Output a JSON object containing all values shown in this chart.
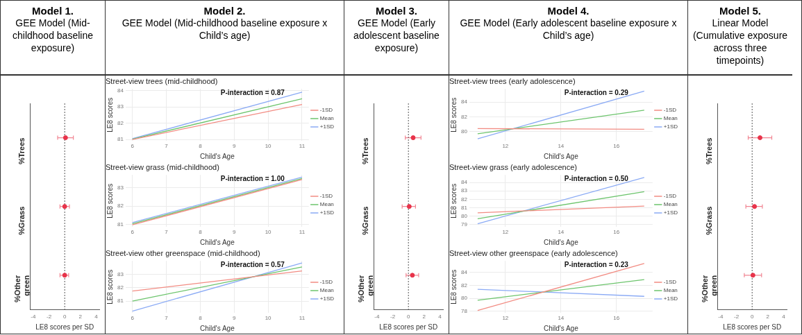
{
  "chart_data": [
    {
      "type": "scatter",
      "title": "Model 1.",
      "subtitle": "GEE Model (Mid-childhood baseline exposure)",
      "orientation": "horizontal",
      "categories": [
        "%Trees",
        "%Grass",
        "%Other green"
      ],
      "values": [
        0.1,
        0.0,
        0.0
      ],
      "errors": [
        [
          -0.9,
          1.1
        ],
        [
          -0.6,
          0.6
        ],
        [
          -0.6,
          0.5
        ]
      ],
      "color": "#e8334a",
      "xlabel": "LE8 scores per SD",
      "xlim": [
        -4.4,
        4.4
      ],
      "xticks": [
        -4,
        -2,
        0,
        2,
        4
      ],
      "ref_lines": [
        {
          "axis": "x",
          "value": 0,
          "line_style": "dotted",
          "color": "#555555"
        }
      ],
      "marker": "circle",
      "grid": false
    },
    {
      "type": "other",
      "title": "Model 2.",
      "subtitle": "GEE Model (Mid-childhood baseline exposure x Child’s age)"
    },
    {
      "type": "line",
      "title": "Street-view trees (mid-childhood)",
      "annotations": [
        "P-interaction = 0.87"
      ],
      "x": [
        6,
        11
      ],
      "xlabel": "Child's Age",
      "ylabel": "LE8 scores",
      "xlim": [
        5.8,
        11.2
      ],
      "xticks": [
        6,
        7,
        8,
        9,
        10,
        11
      ],
      "ylim": [
        80.9,
        84.1
      ],
      "yticks": [
        81,
        82,
        83,
        84
      ],
      "grid": true,
      "legend": "right",
      "marker": "none",
      "series": [
        {
          "name": "-1SD",
          "color": "#f28b82",
          "values": [
            81.0,
            83.15
          ]
        },
        {
          "name": "Mean",
          "color": "#6cc46c",
          "values": [
            81.02,
            83.5
          ]
        },
        {
          "name": "+1SD",
          "color": "#8aaaf5",
          "values": [
            81.05,
            83.9
          ]
        }
      ]
    },
    {
      "type": "line",
      "title": "Street-view grass (mid-childhood)",
      "annotations": [
        "P-interaction = 1.00"
      ],
      "x": [
        6,
        11
      ],
      "xlabel": "Child's Age",
      "ylabel": "LE8 scores",
      "xlim": [
        5.8,
        11.2
      ],
      "xticks": [
        6,
        7,
        8,
        9,
        10,
        11
      ],
      "ylim": [
        80.85,
        83.7
      ],
      "yticks": [
        81,
        82,
        83
      ],
      "grid": true,
      "legend": "right",
      "marker": "none",
      "series": [
        {
          "name": "-1SD",
          "color": "#f28b82",
          "values": [
            80.97,
            83.45
          ]
        },
        {
          "name": "Mean",
          "color": "#6cc46c",
          "values": [
            81.03,
            83.5
          ]
        },
        {
          "name": "+1SD",
          "color": "#8aaaf5",
          "values": [
            81.1,
            83.58
          ]
        }
      ]
    },
    {
      "type": "line",
      "title": "Street-view other greenspace (mid-childhood)",
      "annotations": [
        "P-interaction = 0.57"
      ],
      "x": [
        6,
        11
      ],
      "xlabel": "Child's Age",
      "ylabel": "LE8 scores",
      "xlim": [
        5.8,
        11.2
      ],
      "xticks": [
        6,
        7,
        8,
        9,
        10,
        11
      ],
      "ylim": [
        80.1,
        84.0
      ],
      "yticks": [
        81,
        82,
        83
      ],
      "grid": true,
      "legend": "right",
      "marker": "none",
      "series": [
        {
          "name": "-1SD",
          "color": "#f28b82",
          "values": [
            81.75,
            83.25
          ]
        },
        {
          "name": "Mean",
          "color": "#6cc46c",
          "values": [
            81.0,
            83.55
          ]
        },
        {
          "name": "+1SD",
          "color": "#8aaaf5",
          "values": [
            80.25,
            83.85
          ]
        }
      ]
    },
    {
      "type": "scatter",
      "title": "Model 3.",
      "subtitle": "GEE Model (Early adolescent baseline exposure)",
      "orientation": "horizontal",
      "categories": [
        "%Trees",
        "%Grass",
        "%Other green"
      ],
      "values": [
        0.6,
        0.1,
        0.5
      ],
      "errors": [
        [
          -0.4,
          1.6
        ],
        [
          -0.8,
          0.9
        ],
        [
          -0.3,
          1.3
        ]
      ],
      "color": "#e8334a",
      "xlabel": "LE8 scores per SD",
      "xlim": [
        -4.4,
        4.4
      ],
      "xticks": [
        -4,
        -2,
        0,
        2,
        4
      ],
      "ref_lines": [
        {
          "axis": "x",
          "value": 0,
          "line_style": "dotted",
          "color": "#555555"
        }
      ],
      "marker": "circle",
      "grid": false
    },
    {
      "type": "other",
      "title": "Model 4.",
      "subtitle": "GEE Model (Early adolescent baseline exposure x Child’s age)"
    },
    {
      "type": "line",
      "title": "Street-view trees (early adolescence)",
      "annotations": [
        "P-interaction = 0.29"
      ],
      "x": [
        11,
        17
      ],
      "xlabel": "Child's Age",
      "ylabel": "LE8 scores",
      "xlim": [
        10.7,
        17.3
      ],
      "xticks": [
        12,
        14,
        16
      ],
      "ylim": [
        78.7,
        85.8
      ],
      "yticks": [
        80,
        82,
        84
      ],
      "grid": true,
      "legend": "right",
      "marker": "none",
      "series": [
        {
          "name": "-1SD",
          "color": "#f28b82",
          "values": [
            80.4,
            80.3
          ]
        },
        {
          "name": "Mean",
          "color": "#6cc46c",
          "values": [
            79.7,
            82.9
          ]
        },
        {
          "name": "+1SD",
          "color": "#8aaaf5",
          "values": [
            79.0,
            85.5
          ]
        }
      ]
    },
    {
      "type": "line",
      "title": "Street-view grass (early adolescence)",
      "annotations": [
        "P-interaction = 0.50"
      ],
      "x": [
        11,
        17
      ],
      "xlabel": "Child's Age",
      "ylabel": "LE8 scores",
      "xlim": [
        10.7,
        17.3
      ],
      "xticks": [
        12,
        14,
        16
      ],
      "ylim": [
        78.7,
        84.9
      ],
      "yticks": [
        79,
        80,
        81,
        82,
        83,
        84
      ],
      "grid": true,
      "legend": "right",
      "marker": "none",
      "series": [
        {
          "name": "-1SD",
          "color": "#f28b82",
          "values": [
            80.4,
            81.2
          ]
        },
        {
          "name": "Mean",
          "color": "#6cc46c",
          "values": [
            79.7,
            82.9
          ]
        },
        {
          "name": "+1SD",
          "color": "#8aaaf5",
          "values": [
            79.1,
            84.6
          ]
        }
      ]
    },
    {
      "type": "line",
      "title": "Street-view other greenspace (early adolescence)",
      "annotations": [
        "P-interaction = 0.23"
      ],
      "x": [
        11,
        17
      ],
      "xlabel": "Child's Age",
      "ylabel": "LE8 scores",
      "xlim": [
        10.7,
        17.3
      ],
      "xticks": [
        12,
        14,
        16
      ],
      "ylim": [
        77.7,
        85.8
      ],
      "yticks": [
        78,
        80,
        82,
        84
      ],
      "grid": true,
      "legend": "right",
      "marker": "none",
      "series": [
        {
          "name": "-1SD",
          "color": "#f28b82",
          "values": [
            78.1,
            85.4
          ]
        },
        {
          "name": "Mean",
          "color": "#6cc46c",
          "values": [
            79.7,
            82.9
          ]
        },
        {
          "name": "+1SD",
          "color": "#8aaaf5",
          "values": [
            81.4,
            80.3
          ]
        }
      ]
    },
    {
      "type": "scatter",
      "title": "Model 5.",
      "subtitle": "Linear Model (Cumulative exposure across three timepoints)",
      "orientation": "horizontal",
      "categories": [
        "%Trees",
        "%Grass",
        "%Other green"
      ],
      "values": [
        1.0,
        0.3,
        0.1
      ],
      "errors": [
        [
          -0.5,
          2.5
        ],
        [
          -0.8,
          1.3
        ],
        [
          -1.0,
          1.2
        ]
      ],
      "color": "#e8334a",
      "xlabel": "LE8 scores per SD",
      "xlim": [
        -4.4,
        4.4
      ],
      "xticks": [
        -4,
        -2,
        0,
        2,
        4
      ],
      "ref_lines": [
        {
          "axis": "x",
          "value": 0,
          "line_style": "dotted",
          "color": "#555555"
        }
      ],
      "marker": "circle",
      "grid": false
    }
  ]
}
